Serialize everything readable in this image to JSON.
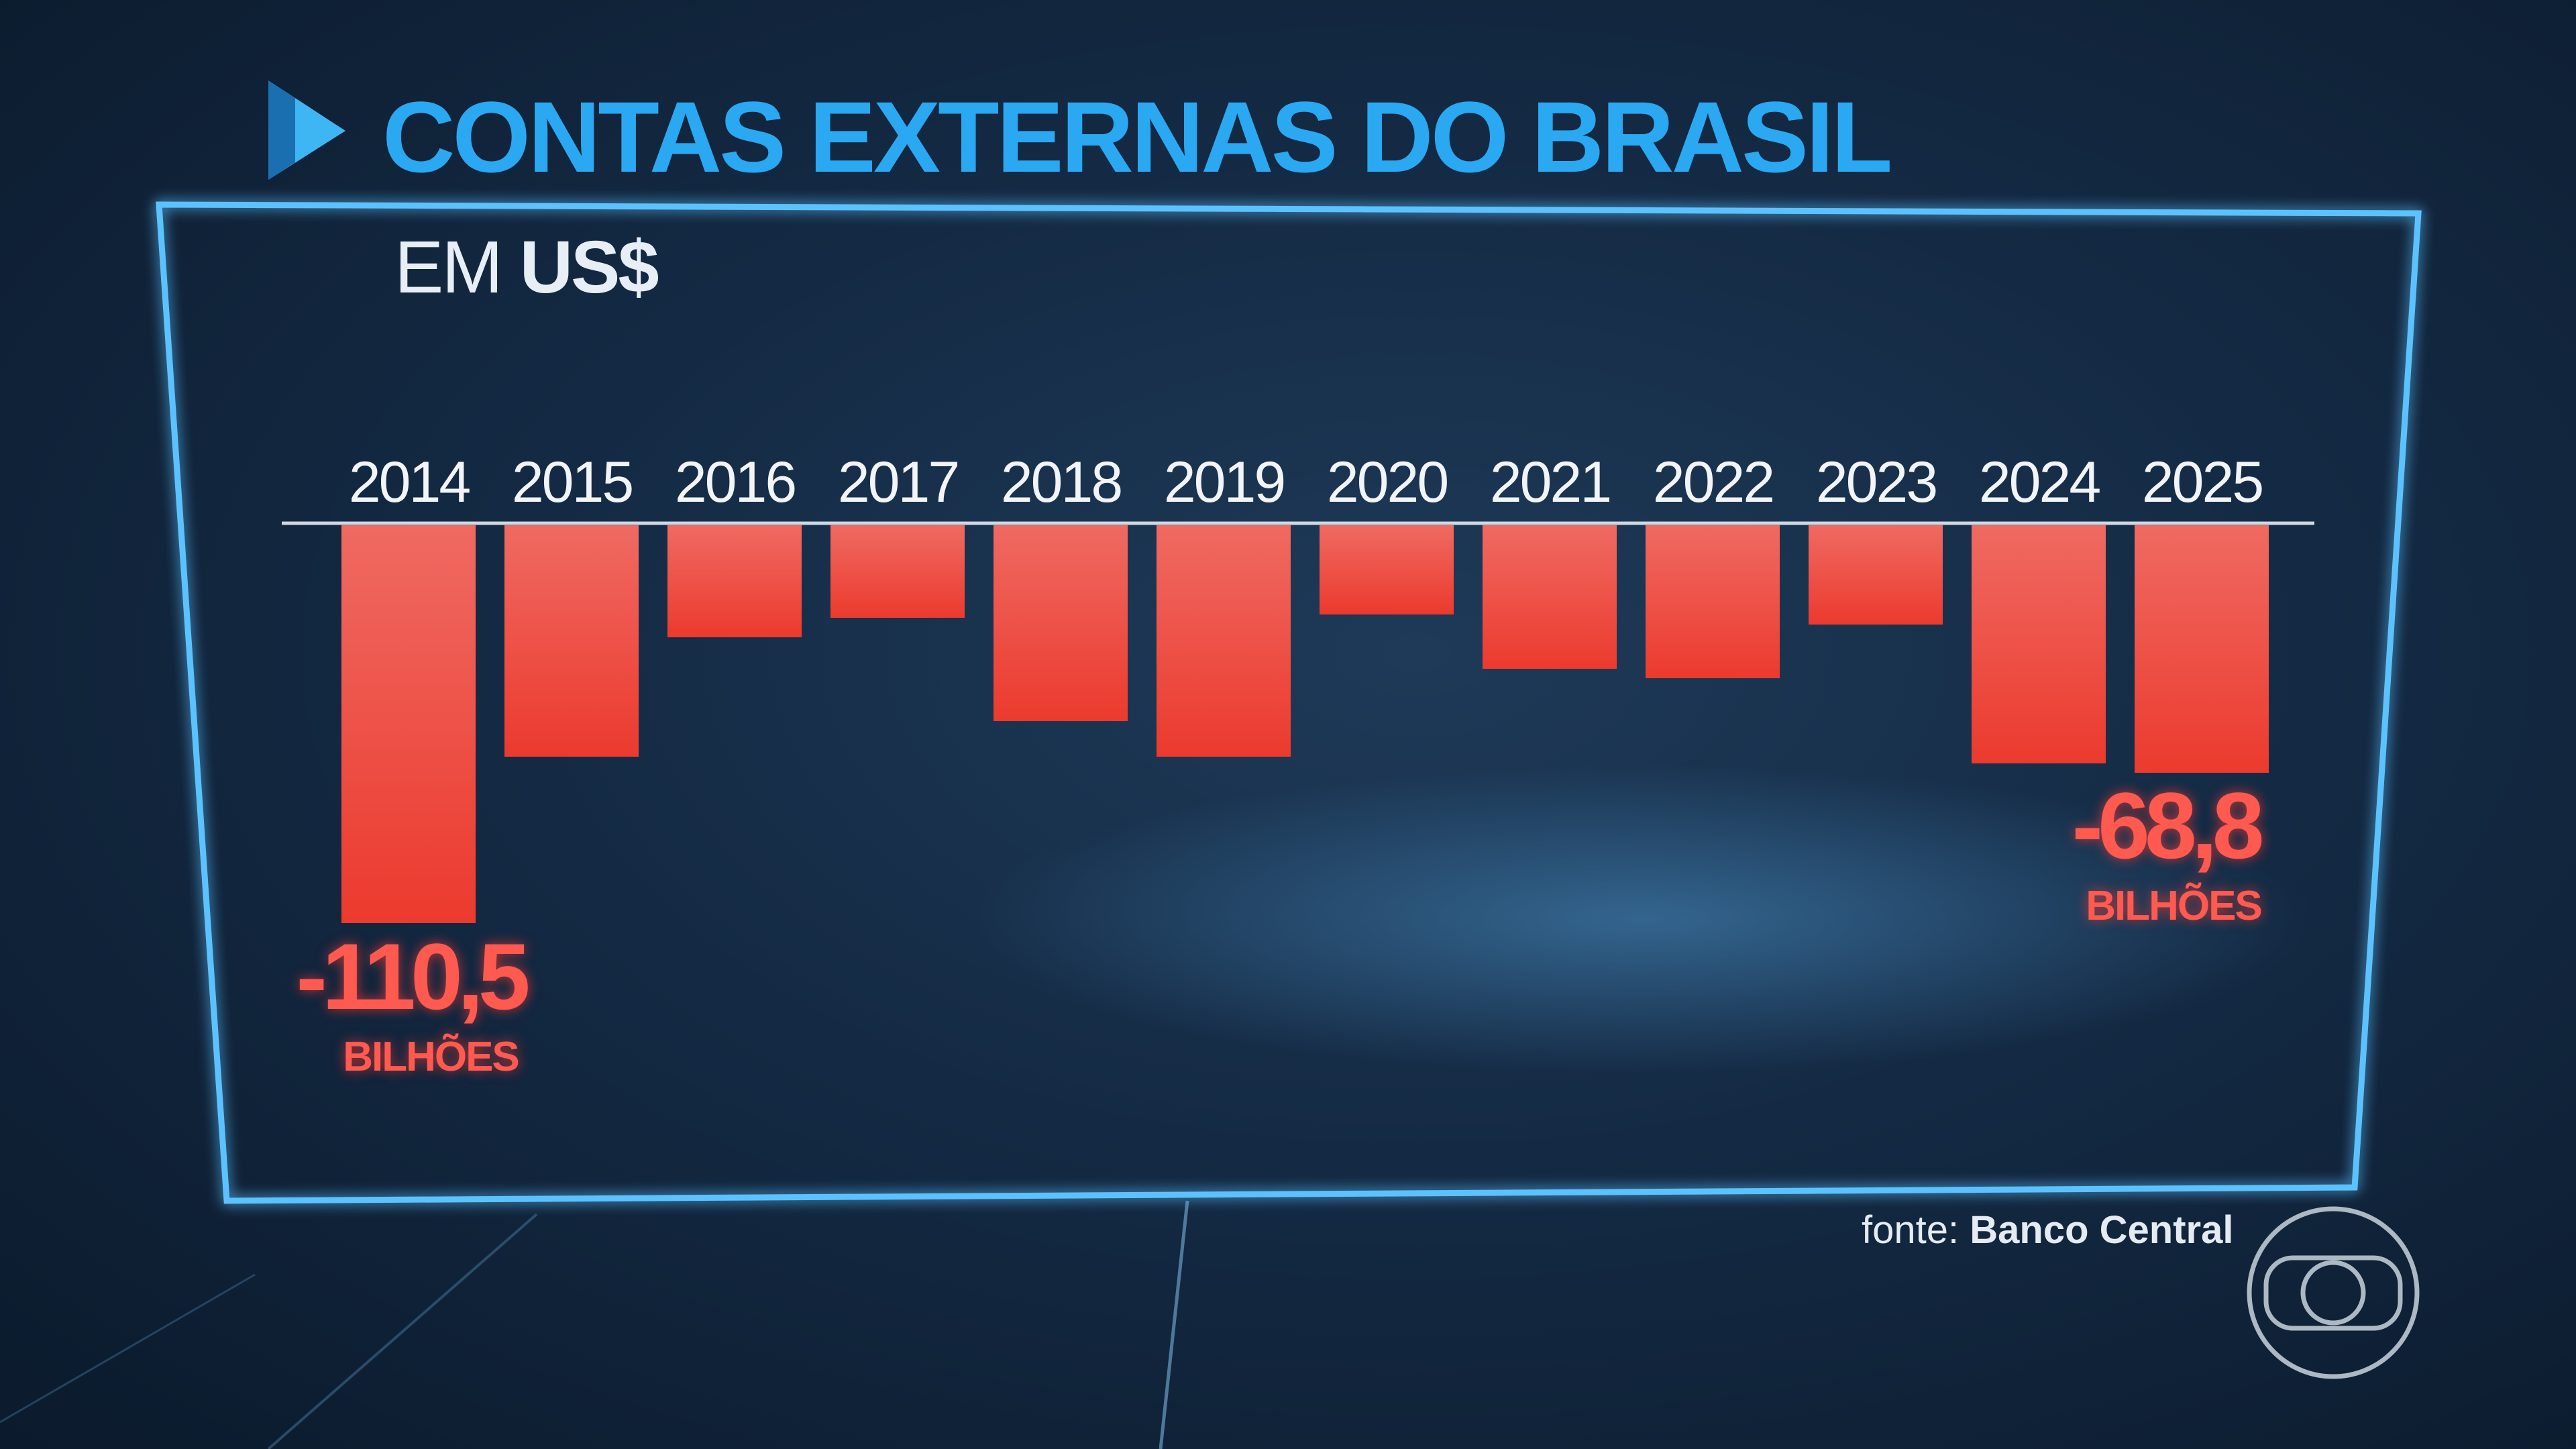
{
  "header": {
    "title": "CONTAS EXTERNAS DO BRASIL",
    "unit_prefix": "EM",
    "unit_currency": "US$"
  },
  "source": {
    "prefix": "fonte:",
    "name": "Banco Central"
  },
  "colors": {
    "bar": "#ec4a40",
    "title": "#2aa8f2",
    "frame": "#4fb8ff",
    "background": "#142a44"
  },
  "logo_icon": "globo-logo-icon",
  "chart_data": {
    "type": "bar",
    "title": "CONTAS EXTERNAS DO BRASIL",
    "subtitle": "EM US$",
    "categories": [
      "2014",
      "2015",
      "2016",
      "2017",
      "2018",
      "2019",
      "2020",
      "2021",
      "2022",
      "2023",
      "2024",
      "2025"
    ],
    "values": [
      -110.5,
      -64.2,
      -31.2,
      -25.8,
      -54.4,
      -64.2,
      -24.8,
      -39.8,
      -42.4,
      -27.6,
      -66.1,
      -68.8
    ],
    "annotations": [
      {
        "category": "2014",
        "value": "-110,5",
        "unit": "BILHÕES"
      },
      {
        "category": "2025",
        "value": "-68,8",
        "unit": "BILHÕES"
      }
    ],
    "ylim": [
      -110.5,
      0
    ],
    "grid": false,
    "legend": "none"
  }
}
